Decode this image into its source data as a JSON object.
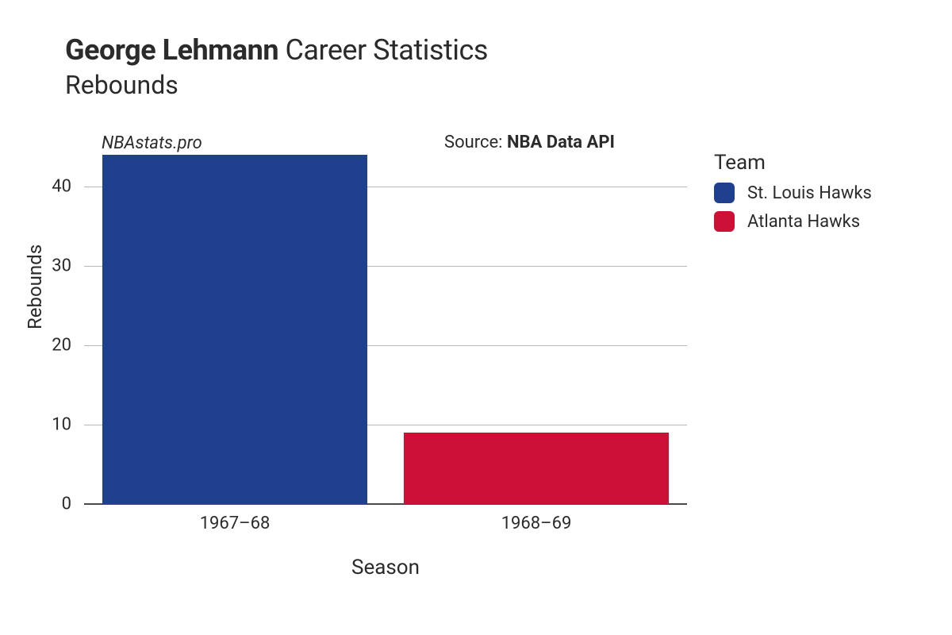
{
  "title": {
    "player_name": "George Lehmann",
    "suffix": "Career Statistics",
    "subtitle": "Rebounds"
  },
  "watermark": "NBAstats.pro",
  "source": {
    "prefix": "Source: ",
    "name": "NBA Data API"
  },
  "chart": {
    "type": "bar",
    "background_color": "#ffffff",
    "grid_color": "#b8b8b8",
    "baseline_color": "#4a4a4a",
    "y": {
      "label": "Rebounds",
      "min": 0,
      "max": 44,
      "ticks": [
        0,
        10,
        20,
        30,
        40
      ],
      "label_fontsize": 24,
      "tick_fontsize": 22
    },
    "x": {
      "label": "Season",
      "label_fontsize": 26,
      "tick_fontsize": 22
    },
    "bar_width_ratio": 0.88,
    "bars": [
      {
        "season": "1967–68",
        "value": 44,
        "team": "St. Louis Hawks",
        "color": "#1f3f8f"
      },
      {
        "season": "1968–69",
        "value": 9,
        "team": "Atlanta Hawks",
        "color": "#cd1136"
      }
    ]
  },
  "legend": {
    "title": "Team",
    "items": [
      {
        "label": "St. Louis Hawks",
        "color": "#1f3f8f"
      },
      {
        "label": "Atlanta Hawks",
        "color": "#cd1136"
      }
    ]
  }
}
